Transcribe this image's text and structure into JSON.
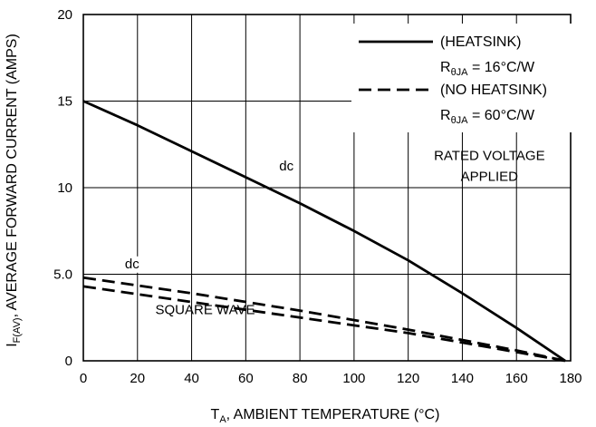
{
  "chart_data": {
    "type": "line",
    "xlabel": {
      "main": "T",
      "sub": "A",
      "rest": ", AMBIENT TEMPERATURE (°C)"
    },
    "ylabel": {
      "main": "I",
      "sub": "F(AV)",
      "rest": ", AVERAGE FORWARD CURRENT (AMPS)"
    },
    "xlim": [
      0,
      180
    ],
    "ylim": [
      0,
      20
    ],
    "x_ticks": [
      "0",
      "20",
      "40",
      "60",
      "80",
      "100",
      "120",
      "140",
      "160",
      "180"
    ],
    "y_ticks": [
      "0",
      "5.0",
      "10",
      "15",
      "20"
    ],
    "grid": true,
    "legend_position": "top-right",
    "legend": [
      {
        "label": "(HEATSINK)",
        "param_main": "R",
        "param_sub": "θJA",
        "param_rest": " = 16°C/W",
        "style": "solid"
      },
      {
        "label": "(NO HEATSINK)",
        "param_main": "R",
        "param_sub": "θJA",
        "param_rest": " = 60°C/W",
        "style": "dashed"
      }
    ],
    "series": [
      {
        "style": "solid",
        "x": [
          0,
          20,
          40,
          60,
          80,
          100,
          120,
          140,
          160,
          178
        ],
        "y": [
          15.0,
          13.6,
          12.1,
          10.6,
          9.1,
          7.5,
          5.8,
          3.9,
          1.9,
          0
        ]
      },
      {
        "style": "dashed",
        "x": [
          0,
          40,
          80,
          120,
          160,
          178
        ],
        "y": [
          4.8,
          3.9,
          2.9,
          1.8,
          0.6,
          0
        ]
      },
      {
        "style": "dashed",
        "x": [
          0,
          40,
          80,
          120,
          160,
          178
        ],
        "y": [
          4.3,
          3.4,
          2.5,
          1.6,
          0.5,
          0
        ]
      }
    ],
    "annotations": [
      {
        "text": "dc",
        "x": 75,
        "y": 11.0
      },
      {
        "text": "dc",
        "x": 18,
        "y": 5.35
      },
      {
        "text": "SQUARE WAVE",
        "x": 45,
        "y": 2.7
      },
      {
        "text": "RATED VOLTAGE",
        "x": 150,
        "y": 11.6
      },
      {
        "text": "APPLIED",
        "x": 150,
        "y": 10.4
      }
    ]
  }
}
